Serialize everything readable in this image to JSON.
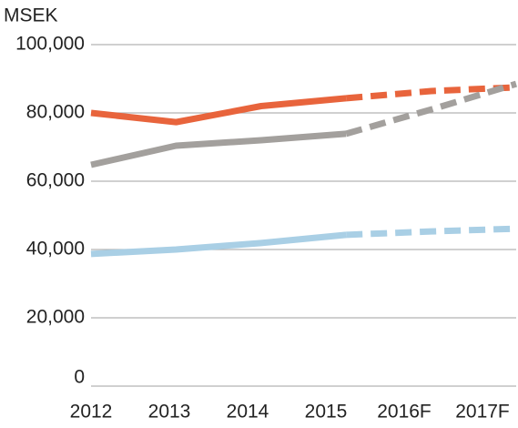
{
  "chart_data": {
    "type": "line",
    "title": "MSEK",
    "categories": [
      "2012",
      "2013",
      "2014",
      "2015",
      "2016F",
      "2017F"
    ],
    "series": [
      {
        "color": "#e8643c",
        "values": [
          80000,
          77300,
          82000,
          84300,
          86400,
          87500
        ]
      },
      {
        "color": "#a3a09d",
        "values": [
          64800,
          70400,
          72000,
          73900,
          81000,
          88500
        ]
      },
      {
        "color": "#a9cfe5",
        "values": [
          38700,
          40000,
          41900,
          44300,
          45300,
          46100
        ]
      }
    ],
    "dashed_from": 3,
    "ylim": [
      0,
      100000
    ],
    "yticks": [
      0,
      {
        "value": 20000,
        "label": "20,000"
      },
      {
        "value": 40000,
        "label": "40,000"
      },
      {
        "value": 60000,
        "label": "60,000"
      },
      {
        "value": 80000,
        "label": "80,000"
      },
      {
        "value": 100000,
        "label": "100,000"
      }
    ],
    "grid": true
  }
}
